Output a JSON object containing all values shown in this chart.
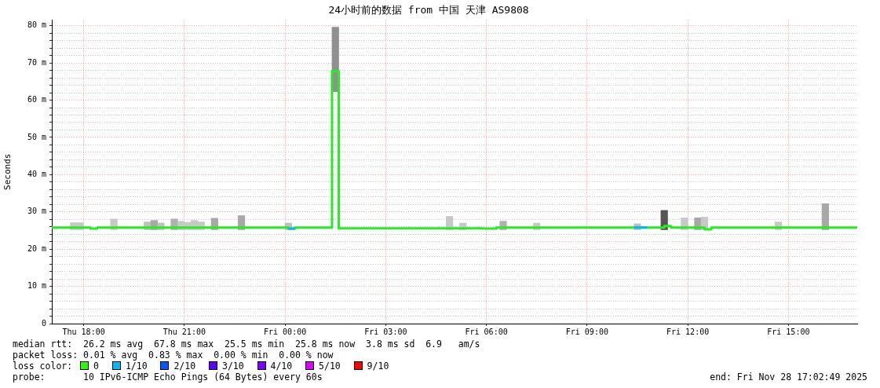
{
  "chart_data": {
    "type": "step",
    "title": "24小时前的数据 from 中国 天津 AS9808",
    "ylabel": "Seconds",
    "xlim": [
      "2025-11-27T17:03",
      "2025-11-28T17:03"
    ],
    "xticks": [
      {
        "value": "2025-11-27T18:00",
        "label": "Thu 18:00"
      },
      {
        "value": "2025-11-27T21:00",
        "label": "Thu 21:00"
      },
      {
        "value": "2025-11-28T00:00",
        "label": "Fri 00:00"
      },
      {
        "value": "2025-11-28T03:00",
        "label": "Fri 03:00"
      },
      {
        "value": "2025-11-28T06:00",
        "label": "Fri 06:00"
      },
      {
        "value": "2025-11-28T09:00",
        "label": "Fri 09:00"
      },
      {
        "value": "2025-11-28T12:00",
        "label": "Fri 12:00"
      },
      {
        "value": "2025-11-28T15:00",
        "label": "Fri 15:00"
      }
    ],
    "ylim": [
      0,
      81.5
    ],
    "yticks": [
      0,
      {
        "value": 2,
        "label": null
      },
      {
        "value": 4,
        "label": null
      },
      {
        "value": 6,
        "label": null
      },
      {
        "value": 8,
        "label": null
      },
      {
        "value": 10,
        "label": "10 m"
      },
      {
        "value": 12,
        "label": null
      },
      {
        "value": 14,
        "label": null
      },
      {
        "value": 16,
        "label": null
      },
      {
        "value": 18,
        "label": null
      },
      {
        "value": 20,
        "label": "20 m"
      },
      {
        "value": 22,
        "label": null
      },
      {
        "value": 24,
        "label": null
      },
      {
        "value": 26,
        "label": null
      },
      {
        "value": 28,
        "label": null
      },
      {
        "value": 30,
        "label": "30 m"
      },
      {
        "value": 32,
        "label": null
      },
      {
        "value": 34,
        "label": null
      },
      {
        "value": 36,
        "label": null
      },
      {
        "value": 38,
        "label": null
      },
      {
        "value": 40,
        "label": "40 m"
      },
      {
        "value": 42,
        "label": null
      },
      {
        "value": 44,
        "label": null
      },
      {
        "value": 46,
        "label": null
      },
      {
        "value": 48,
        "label": null
      },
      {
        "value": 50,
        "label": "50 m"
      },
      {
        "value": 52,
        "label": null
      },
      {
        "value": 54,
        "label": null
      },
      {
        "value": 56,
        "label": null
      },
      {
        "value": 58,
        "label": null
      },
      {
        "value": 60,
        "label": "60 m"
      },
      {
        "value": 62,
        "label": null
      },
      {
        "value": 64,
        "label": null
      },
      {
        "value": 66,
        "label": null
      },
      {
        "value": 68,
        "label": null
      },
      {
        "value": 70,
        "label": "70 m"
      },
      {
        "value": 72,
        "label": null
      },
      {
        "value": 74,
        "label": null
      },
      {
        "value": 76,
        "label": null
      },
      {
        "value": 78,
        "label": null
      },
      {
        "value": 80,
        "label": "80 m"
      }
    ],
    "grid": true,
    "legend": false,
    "marker": "none",
    "line_style": "solid",
    "series": [
      {
        "color": "#22ee22",
        "x": [
          "2025-11-27T17:03",
          "2025-11-27T18:12",
          "2025-11-27T18:24",
          "2025-11-28T00:06",
          "2025-11-28T00:18",
          "2025-11-28T01:24",
          "2025-11-28T01:36",
          "2025-11-28T05:54",
          "2025-11-28T06:18",
          "2025-11-28T10:24",
          "2025-11-28T10:48",
          "2025-11-28T11:18",
          "2025-11-28T11:30",
          "2025-11-28T12:30",
          "2025-11-28T12:42",
          "2025-11-28T17:03"
        ],
        "values": [
          25.8,
          25.5,
          25.8,
          25.5,
          25.8,
          67.8,
          25.6,
          25.5,
          25.8,
          25.8,
          25.8,
          26.2,
          25.8,
          25.3,
          25.8,
          25.8
        ]
      },
      {
        "color": "#00b8ff",
        "x": [
          "2025-11-28T00:06",
          "2025-11-28T00:18"
        ],
        "values": [
          25.5,
          25.5
        ]
      },
      {
        "color": "#00b8ff",
        "x": [
          "2025-11-28T10:24",
          "2025-11-28T10:48"
        ],
        "values": [
          25.8,
          25.8
        ]
      },
      {
        "type": "bar",
        "color": "#c8c8c8",
        "x": [
          "2025-11-27T17:42",
          "2025-11-27T17:54",
          "2025-11-27T18:54",
          "2025-11-27T19:54",
          "2025-11-27T20:06",
          "2025-11-27T20:18",
          "2025-11-27T20:42",
          "2025-11-27T20:54",
          "2025-11-27T21:06",
          "2025-11-27T21:18",
          "2025-11-27T21:30",
          "2025-11-27T21:54",
          "2025-11-27T22:42",
          "2025-11-28T00:06",
          "2025-11-28T01:30",
          "2025-11-28T04:54",
          "2025-11-28T05:18",
          "2025-11-28T06:30",
          "2025-11-28T07:30",
          "2025-11-28T10:30",
          "2025-11-28T11:18",
          "2025-11-28T11:54",
          "2025-11-28T12:18",
          "2025-11-28T12:30",
          "2025-11-28T14:42",
          "2025-11-28T16:06"
        ],
        "base": [
          25.2,
          25.2,
          25.2,
          25.2,
          25.2,
          25.2,
          25.2,
          25.2,
          25.2,
          25.2,
          25.2,
          25.2,
          25.2,
          25.2,
          62.3,
          25.2,
          25.2,
          25.2,
          25.2,
          25.2,
          25.2,
          25.2,
          25.2,
          25.2,
          25.2,
          25.2
        ],
        "values": [
          1.9,
          1.9,
          2.9,
          2.1,
          2.5,
          1.8,
          2.9,
          2.3,
          2,
          2.5,
          2.1,
          3.1,
          3.8,
          1.8,
          17.3,
          3.6,
          1.8,
          2.3,
          1.8,
          1.6,
          5.2,
          3.2,
          3.2,
          3.4,
          2.1,
          7
        ],
        "colors": [
          null,
          null,
          null,
          "#c0c0c0",
          "#a8a8a8",
          "#c0c0c0",
          "#b0b0b0",
          null,
          null,
          null,
          null,
          "#a8a8a8",
          "#a8a8a8",
          "#c0c0c0",
          "#909090",
          null,
          null,
          "#b0b0b0",
          null,
          "#c0c0c0",
          "#555555",
          null,
          "#a8a8a8",
          null,
          null,
          "#a8a8a8"
        ]
      }
    ],
    "annotations": [
      "median rtt:  26.2 ms avg  67.8 ms max  25.5 ms min  25.8 ms now  3.8 ms sd  6.9   am/s",
      "packet loss: 0.01 % avg  0.83 % max  0.00 % min  0.00 % now",
      "loss color:",
      "0",
      "1/10",
      "2/10",
      "3/10",
      "4/10",
      "5/10",
      "9/10",
      "probe:       10 IPv6-ICMP Echo Pings (64 Bytes) every 60s",
      "end: Fri Nov 28 17:02:49 2025"
    ]
  }
}
